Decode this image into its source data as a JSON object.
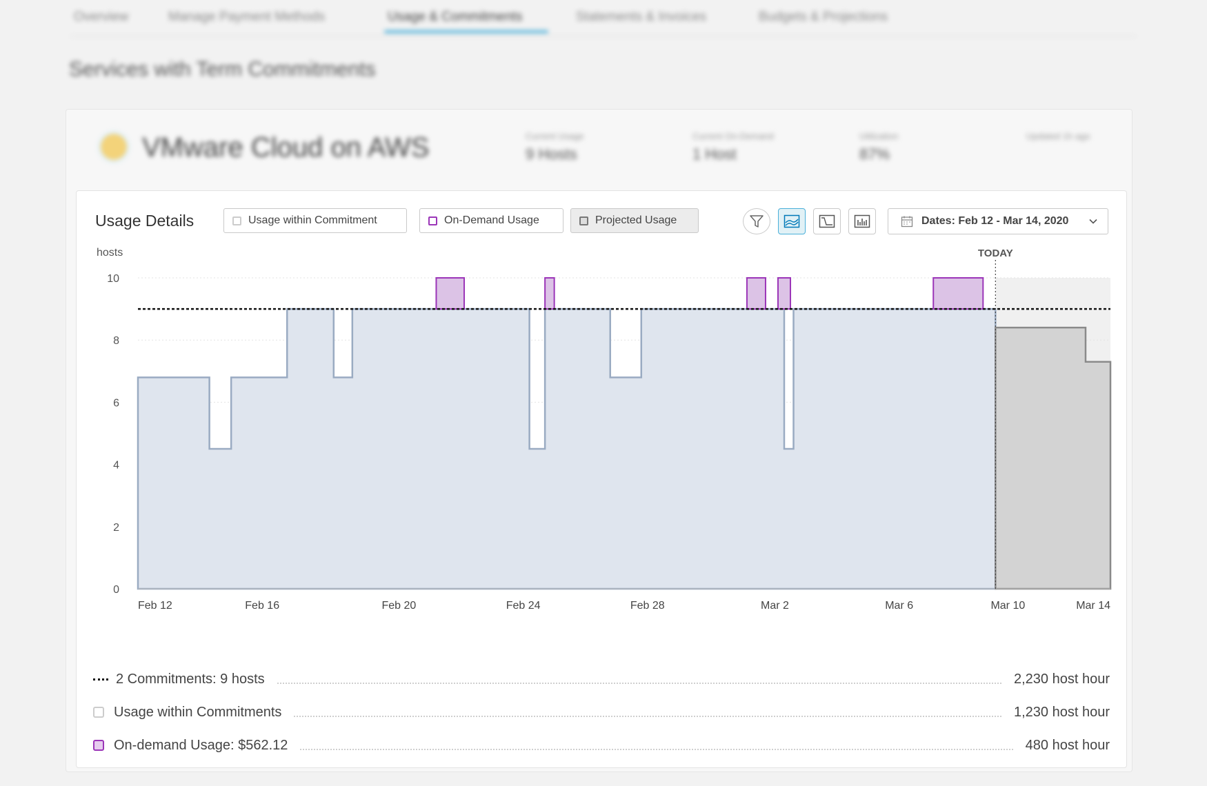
{
  "tabs": [
    {
      "label": "Overview"
    },
    {
      "label": "Manage Payment Methods"
    },
    {
      "label": "Usage & Commitments",
      "active": true
    },
    {
      "label": "Statements & Invoices"
    },
    {
      "label": "Budgets & Projections"
    }
  ],
  "section_title": "Services with Term Commitments",
  "service": {
    "name": "VMware Cloud on AWS",
    "stats": [
      {
        "label": "Current Usage",
        "value": "9 Hosts"
      },
      {
        "label": "Current On-Demand",
        "value": "1 Host"
      },
      {
        "label": "Utilization",
        "value": "87%"
      },
      {
        "label": "Updated 1h ago",
        "value": ""
      }
    ]
  },
  "usage_details": {
    "title": "Usage Details",
    "legend": {
      "within": "Usage within Commitment",
      "on_demand": "On-Demand Usage",
      "projected": "Projected Usage"
    },
    "toolbar_icons": [
      "filter-icon",
      "area-chart-icon",
      "step-line-icon",
      "bar-chart-icon"
    ],
    "date_range": "Dates: Feb 12 - Mar 14, 2020"
  },
  "colors": {
    "usage_fill": "#dfe5ee",
    "usage_stroke": "#9aabc2",
    "on_demand_fill": "#dcc3e6",
    "on_demand_stroke": "#9b35b8",
    "projected_fill": "#d3d3d3",
    "projected_stroke": "#8a8a8a",
    "accent": "#49afd9"
  },
  "chart_data": {
    "type": "area",
    "ylabel": "hosts",
    "ylim": [
      0,
      10
    ],
    "yticks": [
      0,
      2,
      4,
      6,
      8,
      10
    ],
    "xlim": [
      "Feb 12",
      "Mar 14"
    ],
    "xticks": [
      {
        "day": 0,
        "label": "Feb 12"
      },
      {
        "day": 4,
        "label": "Feb 16"
      },
      {
        "day": 8.4,
        "label": "Feb 20"
      },
      {
        "day": 12.4,
        "label": "Feb 24"
      },
      {
        "day": 16.4,
        "label": "Feb 28"
      },
      {
        "day": 20.5,
        "label": "Mar 2"
      },
      {
        "day": 24.5,
        "label": "Mar 6"
      },
      {
        "day": 28,
        "label": "Mar 10"
      },
      {
        "day": 31.3,
        "label": "Mar 14"
      }
    ],
    "today_label": "TODAY",
    "today_day": 27.6,
    "commitment_level": 9,
    "usage_within_commitment": [
      [
        0,
        6.8
      ],
      [
        2.3,
        4.5
      ],
      [
        3,
        6.8
      ],
      [
        4.8,
        9
      ],
      [
        6.3,
        6.8
      ],
      [
        6.9,
        9
      ],
      [
        12.6,
        4.5
      ],
      [
        13.1,
        9
      ],
      [
        15.2,
        6.8
      ],
      [
        16.2,
        9
      ],
      [
        20.8,
        4.5
      ],
      [
        21.1,
        9
      ],
      [
        27.6,
        9
      ]
    ],
    "on_demand_usage": [
      {
        "start": 9.6,
        "end": 10.5,
        "value": 10
      },
      {
        "start": 13.1,
        "end": 13.4,
        "value": 10
      },
      {
        "start": 19.6,
        "end": 20.2,
        "value": 10
      },
      {
        "start": 20.6,
        "end": 21.0,
        "value": 10
      },
      {
        "start": 25.6,
        "end": 27.2,
        "value": 10
      }
    ],
    "projected_usage": [
      [
        27.6,
        8.4
      ],
      [
        30.5,
        7.3
      ],
      [
        31.3,
        7.3
      ]
    ]
  },
  "summary": [
    {
      "label": "2 Commitments: 9 hosts",
      "value": "2,230 host hour",
      "swatch": "dash"
    },
    {
      "label": "Usage within Commitments",
      "value": "1,230 host hour",
      "swatch": "gray"
    },
    {
      "label": "On-demand Usage: $562.12",
      "value": "480 host hour",
      "swatch": "purple"
    }
  ]
}
